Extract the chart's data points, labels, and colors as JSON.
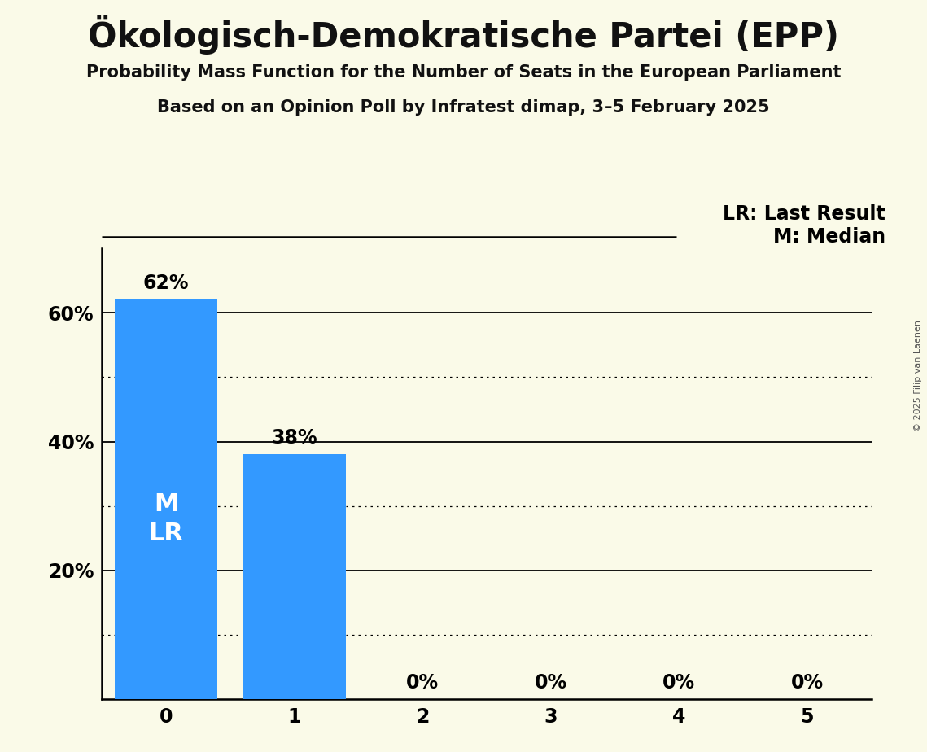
{
  "title": "Ökologisch-Demokratische Partei (EPP)",
  "subtitle1": "Probability Mass Function for the Number of Seats in the European Parliament",
  "subtitle2": "Based on an Opinion Poll by Infratest dimap, 3–5 February 2025",
  "copyright": "© 2025 Filip van Laenen",
  "categories": [
    0,
    1,
    2,
    3,
    4,
    5
  ],
  "values": [
    0.62,
    0.38,
    0.0,
    0.0,
    0.0,
    0.0
  ],
  "bar_color": "#3399ff",
  "bar_labels": [
    "62%",
    "38%",
    "0%",
    "0%",
    "0%",
    "0%"
  ],
  "ylim": [
    0,
    0.7
  ],
  "yticks": [
    0.2,
    0.4,
    0.6
  ],
  "ytick_labels": [
    "20%",
    "40%",
    "60%"
  ],
  "dotted_ylines": [
    0.1,
    0.3,
    0.5
  ],
  "solid_ylines": [
    0.2,
    0.4,
    0.6
  ],
  "background_color": "#fafae8",
  "title_fontsize": 30,
  "subtitle_fontsize": 15,
  "axis_tick_fontsize": 17,
  "bar_label_fontsize": 17,
  "legend_fontsize": 17,
  "inbar_label_color": "#ffffff",
  "inbar_label_fontsize": 22
}
